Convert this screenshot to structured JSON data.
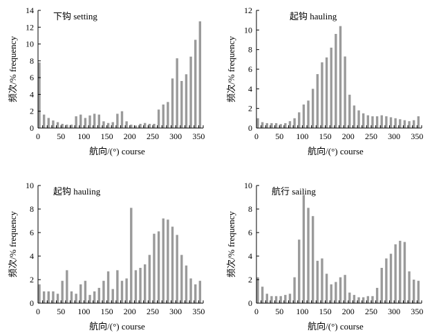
{
  "chart_data": [
    {
      "type": "bar",
      "title": "下钩 setting",
      "xlabel": "航向/(°) course",
      "ylabel": "频次/% frequency",
      "xlim": [
        0,
        360
      ],
      "ylim": [
        0,
        14
      ],
      "xticks": [
        0,
        50,
        100,
        150,
        200,
        250,
        300,
        350
      ],
      "yticks": [
        0,
        2,
        4,
        6,
        8,
        10,
        12,
        14
      ],
      "grid": false,
      "x": [
        0,
        10,
        20,
        30,
        40,
        50,
        60,
        70,
        80,
        90,
        100,
        110,
        120,
        130,
        140,
        150,
        160,
        170,
        180,
        190,
        200,
        210,
        220,
        230,
        240,
        250,
        260,
        270,
        280,
        290,
        300,
        310,
        320,
        330,
        340,
        350
      ],
      "values": [
        7.8,
        1.6,
        1.2,
        0.9,
        0.7,
        0.5,
        0.4,
        0.4,
        1.4,
        1.6,
        1.2,
        1.5,
        1.7,
        1.6,
        0.8,
        0.6,
        0.7,
        1.7,
        2.0,
        0.8,
        0.4,
        0.3,
        0.5,
        0.6,
        0.5,
        0.5,
        2.2,
        2.8,
        3.1,
        5.9,
        8.3,
        5.6,
        6.4,
        8.5,
        10.5,
        12.7
      ]
    },
    {
      "type": "bar",
      "title": "起钩 hauling",
      "xlabel": "航向/(°) course",
      "ylabel": "频次/% frequency",
      "xlim": [
        0,
        360
      ],
      "ylim": [
        0,
        12
      ],
      "xticks": [
        0,
        50,
        100,
        150,
        200,
        250,
        300,
        350
      ],
      "yticks": [
        0,
        2,
        4,
        6,
        8,
        10,
        12
      ],
      "grid": false,
      "x": [
        0,
        10,
        20,
        30,
        40,
        50,
        60,
        70,
        80,
        90,
        100,
        110,
        120,
        130,
        140,
        150,
        160,
        170,
        180,
        190,
        200,
        210,
        220,
        230,
        240,
        250,
        260,
        270,
        280,
        290,
        300,
        310,
        320,
        330,
        340,
        350
      ],
      "values": [
        1.0,
        0.6,
        0.5,
        0.5,
        0.5,
        0.4,
        0.5,
        0.7,
        1.0,
        1.6,
        2.4,
        2.8,
        4.0,
        5.5,
        6.7,
        7.2,
        8.2,
        9.6,
        10.4,
        7.3,
        3.4,
        2.3,
        1.8,
        1.5,
        1.3,
        1.2,
        1.2,
        1.3,
        1.2,
        1.1,
        1.0,
        0.9,
        0.8,
        0.7,
        0.8,
        1.2
      ]
    },
    {
      "type": "bar",
      "title": "起钩 hauling",
      "xlabel": "航向/(°) course",
      "ylabel": "频次/% frequency",
      "xlim": [
        0,
        360
      ],
      "ylim": [
        0,
        10
      ],
      "xticks": [
        0,
        50,
        100,
        150,
        200,
        250,
        300,
        350
      ],
      "yticks": [
        0,
        2,
        4,
        6,
        8,
        10
      ],
      "grid": false,
      "x": [
        0,
        10,
        20,
        30,
        40,
        50,
        60,
        70,
        80,
        90,
        100,
        110,
        120,
        130,
        140,
        150,
        160,
        170,
        180,
        190,
        200,
        210,
        220,
        230,
        240,
        250,
        260,
        270,
        280,
        290,
        300,
        310,
        320,
        330,
        340,
        350
      ],
      "values": [
        1.6,
        1.0,
        1.0,
        1.0,
        0.8,
        1.9,
        2.8,
        1.0,
        0.8,
        1.6,
        1.9,
        0.7,
        1.0,
        1.3,
        1.9,
        2.7,
        1.2,
        2.8,
        1.9,
        2.1,
        8.1,
        2.8,
        3.0,
        3.3,
        4.1,
        5.9,
        6.1,
        7.2,
        7.1,
        6.5,
        5.8,
        4.1,
        3.2,
        2.1,
        1.6,
        1.9
      ]
    },
    {
      "type": "bar",
      "title": "航行 sailing",
      "xlabel": "航向/(°) course",
      "ylabel": "频次/% frequency",
      "xlim": [
        0,
        360
      ],
      "ylim": [
        0,
        10
      ],
      "xticks": [
        0,
        50,
        100,
        150,
        200,
        250,
        300,
        350
      ],
      "yticks": [
        0,
        2,
        4,
        6,
        8,
        10
      ],
      "grid": false,
      "x": [
        0,
        10,
        20,
        30,
        40,
        50,
        60,
        70,
        80,
        90,
        100,
        110,
        120,
        130,
        140,
        150,
        160,
        170,
        180,
        190,
        200,
        210,
        220,
        230,
        240,
        250,
        260,
        270,
        280,
        290,
        300,
        310,
        320,
        330,
        340,
        350
      ],
      "values": [
        2.2,
        1.4,
        0.8,
        0.6,
        0.6,
        0.6,
        0.7,
        0.8,
        2.2,
        5.4,
        9.2,
        8.1,
        7.4,
        3.6,
        3.8,
        2.5,
        1.6,
        1.8,
        2.2,
        2.4,
        0.9,
        0.7,
        0.5,
        0.5,
        0.6,
        0.6,
        1.3,
        3.0,
        3.8,
        4.2,
        5.0,
        5.3,
        5.2,
        2.7,
        2.0,
        1.9
      ]
    }
  ]
}
